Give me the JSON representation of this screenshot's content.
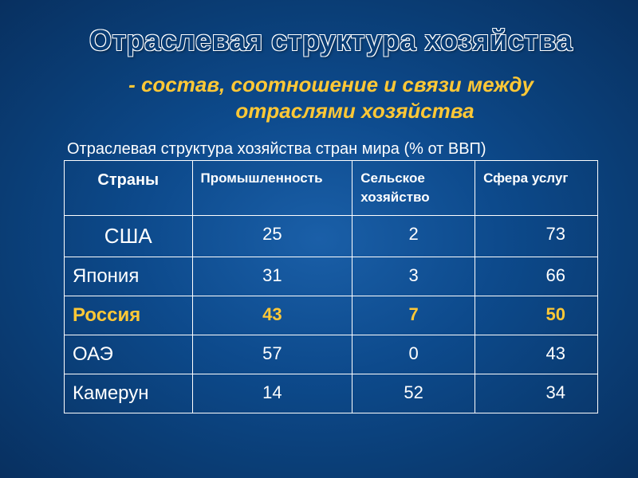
{
  "title": "Отраслевая структура хозяйства",
  "subtitle_line1": "- состав, соотношение и связи между",
  "subtitle_line2": "отраслями хозяйства",
  "table_caption": "Отраслевая структура хозяйства стран мира (% от ВВП)",
  "columns": {
    "country": "Страны",
    "industry": "Промышленность",
    "agriculture": "Сельское хозяйство",
    "services": "Сфера услуг"
  },
  "rows": [
    {
      "country": "США",
      "industry": "25",
      "agriculture": "2",
      "services": "73",
      "highlight": false,
      "big": true
    },
    {
      "country": "Япония",
      "industry": "31",
      "agriculture": "3",
      "services": "66",
      "highlight": false,
      "big": false
    },
    {
      "country": "Россия",
      "industry": "43",
      "agriculture": "7",
      "services": "50",
      "highlight": true,
      "big": false
    },
    {
      "country": "ОАЭ",
      "industry": "57",
      "agriculture": "0",
      "services": "43",
      "highlight": false,
      "big": false
    },
    {
      "country": "Камерун",
      "industry": "14",
      "agriculture": "52",
      "services": "34",
      "highlight": false,
      "big": false
    }
  ],
  "style": {
    "title_color_fill": "#0a3d75",
    "title_outline": "#ffffff",
    "subtitle_color": "#ffc836",
    "text_color": "#ffffff",
    "highlight_color": "#ffc836",
    "border_color": "#ffffff",
    "bg_gradient_center": "#1a5fa8",
    "bg_gradient_edge": "#083060",
    "title_fontsize": 36,
    "subtitle_fontsize": 26,
    "caption_fontsize": 20,
    "cell_fontsize": 22,
    "header_fontsize": 17
  }
}
